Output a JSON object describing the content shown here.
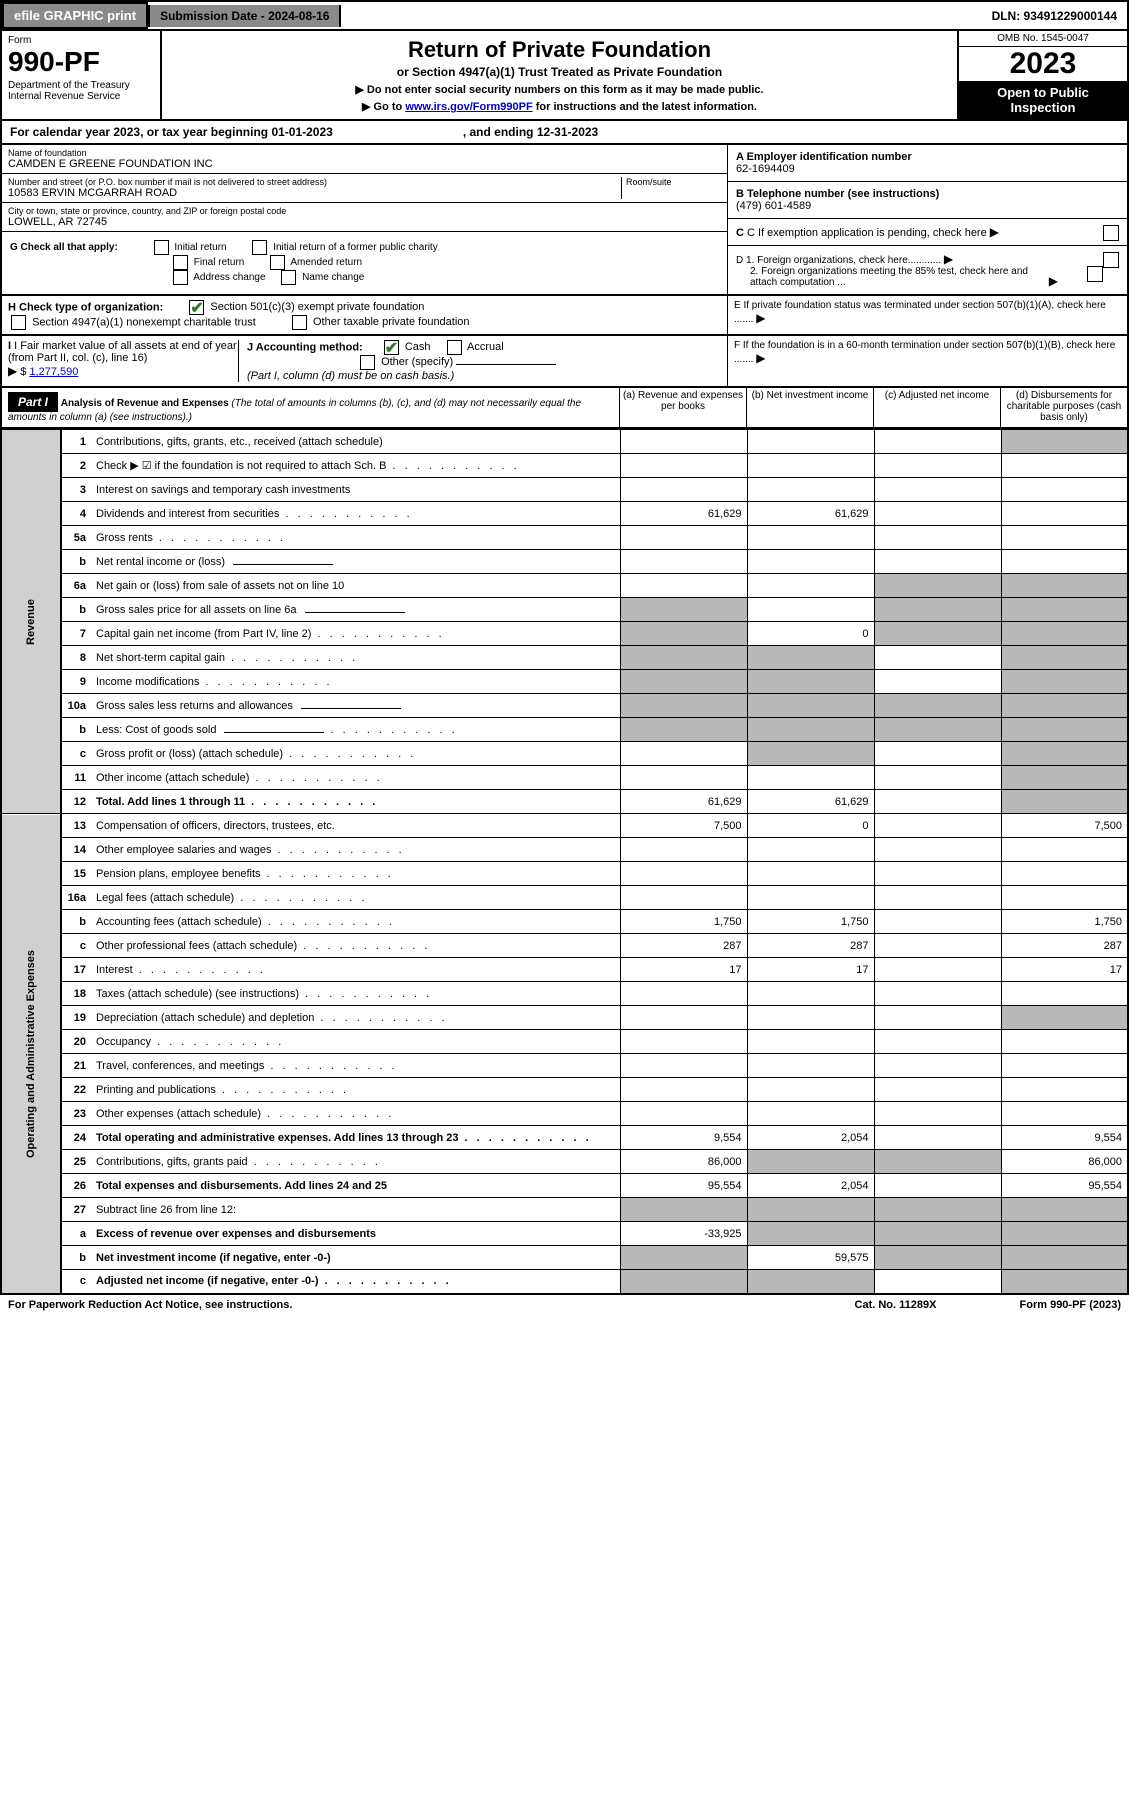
{
  "topbar": {
    "efile": "efile GRAPHIC print",
    "submission": "Submission Date - 2024-08-16",
    "dln": "DLN: 93491229000144"
  },
  "header": {
    "form_label": "Form",
    "form_num": "990-PF",
    "dept": "Department of the Treasury\nInternal Revenue Service",
    "title": "Return of Private Foundation",
    "sub1": "or Section 4947(a)(1) Trust Treated as Private Foundation",
    "sub2a": "▶ Do not enter social security numbers on this form as it may be made public.",
    "sub2b_pre": "▶ Go to ",
    "sub2b_link": "www.irs.gov/Form990PF",
    "sub2b_post": " for instructions and the latest information.",
    "omb": "OMB No. 1545-0047",
    "year": "2023",
    "open": "Open to Public Inspection"
  },
  "yrline": {
    "text_a": "For calendar year 2023, or tax year beginning 01-01-2023",
    "text_b": ", and ending 12-31-2023"
  },
  "info": {
    "name_lbl": "Name of foundation",
    "name": "CAMDEN E GREENE FOUNDATION INC",
    "addr_lbl": "Number and street (or P.O. box number if mail is not delivered to street address)",
    "addr": "10583 ERVIN MCGARRAH ROAD",
    "room_lbl": "Room/suite",
    "city_lbl": "City or town, state or province, country, and ZIP or foreign postal code",
    "city": "LOWELL, AR  72745",
    "a_lbl": "A Employer identification number",
    "a_val": "62-1694409",
    "b_lbl": "B Telephone number (see instructions)",
    "b_val": "(479) 601-4589",
    "c_lbl": "C If exemption application is pending, check here",
    "d1": "D 1. Foreign organizations, check here............",
    "d2": "2. Foreign organizations meeting the 85% test, check here and attach computation ...",
    "e": "E  If private foundation status was terminated under section 507(b)(1)(A), check here .......",
    "f": "F  If the foundation is in a 60-month termination under section 507(b)(1)(B), check here .......",
    "g_lbl": "G Check all that apply:",
    "g_opts": [
      "Initial return",
      "Initial return of a former public charity",
      "Final return",
      "Amended return",
      "Address change",
      "Name change"
    ],
    "h_lbl": "H Check type of organization:",
    "h1": "Section 501(c)(3) exempt private foundation",
    "h2": "Section 4947(a)(1) nonexempt charitable trust",
    "h3": "Other taxable private foundation",
    "i_lbl": "I Fair market value of all assets at end of year (from Part II, col. (c), line 16)",
    "i_val": "1,277,590",
    "j_lbl": "J Accounting method:",
    "j1": "Cash",
    "j2": "Accrual",
    "j3": "Other (specify)",
    "j_note": "(Part I, column (d) must be on cash basis.)"
  },
  "part1": {
    "label": "Part I",
    "title": "Analysis of Revenue and Expenses",
    "note": "(The total of amounts in columns (b), (c), and (d) may not necessarily equal the amounts in column (a) (see instructions).)",
    "col_a": "(a)   Revenue and expenses per books",
    "col_b": "(b)   Net investment income",
    "col_c": "(c)   Adjusted net income",
    "col_d": "(d)   Disbursements for charitable purposes (cash basis only)",
    "side_rev": "Revenue",
    "side_exp": "Operating and Administrative Expenses"
  },
  "rows": [
    {
      "n": "1",
      "d": "Contributions, gifts, grants, etc., received (attach schedule)",
      "a": "",
      "b": "",
      "c": "",
      "dg": true,
      "dv": ""
    },
    {
      "n": "2",
      "d": "Check ▶ ☑ if the foundation is not required to attach Sch. B",
      "dots": true
    },
    {
      "n": "3",
      "d": "Interest on savings and temporary cash investments"
    },
    {
      "n": "4",
      "d": "Dividends and interest from securities",
      "dots": true,
      "a": "61,629",
      "b": "61,629"
    },
    {
      "n": "5a",
      "d": "Gross rents",
      "dots": true
    },
    {
      "n": "b",
      "d": "Net rental income or (loss)",
      "inline": true
    },
    {
      "n": "6a",
      "d": "Net gain or (loss) from sale of assets not on line 10",
      "cg": true,
      "dg": true
    },
    {
      "n": "b",
      "d": "Gross sales price for all assets on line 6a",
      "inline": true,
      "ag": true,
      "cg": true,
      "dg": true
    },
    {
      "n": "7",
      "d": "Capital gain net income (from Part IV, line 2)",
      "dots": true,
      "ag": true,
      "b": "0",
      "cg": true,
      "dg": true
    },
    {
      "n": "8",
      "d": "Net short-term capital gain",
      "dots": true,
      "ag": true,
      "bg": true,
      "dg": true
    },
    {
      "n": "9",
      "d": "Income modifications",
      "dots": true,
      "ag": true,
      "bg": true,
      "dg": true
    },
    {
      "n": "10a",
      "d": "Gross sales less returns and allowances",
      "inline": true,
      "ag": true,
      "bg": true,
      "cg": true,
      "dg": true
    },
    {
      "n": "b",
      "d": "Less: Cost of goods sold",
      "dots": true,
      "inline": true,
      "ag": true,
      "bg": true,
      "cg": true,
      "dg": true
    },
    {
      "n": "c",
      "d": "Gross profit or (loss) (attach schedule)",
      "dots": true,
      "bg": true,
      "dg": true
    },
    {
      "n": "11",
      "d": "Other income (attach schedule)",
      "dots": true,
      "dg": true
    },
    {
      "n": "12",
      "d": "Total. Add lines 1 through 11",
      "dots": true,
      "bold": true,
      "a": "61,629",
      "b": "61,629",
      "dg": true
    },
    {
      "n": "13",
      "d": "Compensation of officers, directors, trustees, etc.",
      "a": "7,500",
      "b": "0",
      "dv": "7,500"
    },
    {
      "n": "14",
      "d": "Other employee salaries and wages",
      "dots": true
    },
    {
      "n": "15",
      "d": "Pension plans, employee benefits",
      "dots": true
    },
    {
      "n": "16a",
      "d": "Legal fees (attach schedule)",
      "dots": true
    },
    {
      "n": "b",
      "d": "Accounting fees (attach schedule)",
      "dots": true,
      "a": "1,750",
      "b": "1,750",
      "dv": "1,750"
    },
    {
      "n": "c",
      "d": "Other professional fees (attach schedule)",
      "dots": true,
      "a": "287",
      "b": "287",
      "dv": "287"
    },
    {
      "n": "17",
      "d": "Interest",
      "dots": true,
      "a": "17",
      "b": "17",
      "dv": "17"
    },
    {
      "n": "18",
      "d": "Taxes (attach schedule) (see instructions)",
      "dots": true
    },
    {
      "n": "19",
      "d": "Depreciation (attach schedule) and depletion",
      "dots": true,
      "dg": true
    },
    {
      "n": "20",
      "d": "Occupancy",
      "dots": true
    },
    {
      "n": "21",
      "d": "Travel, conferences, and meetings",
      "dots": true
    },
    {
      "n": "22",
      "d": "Printing and publications",
      "dots": true
    },
    {
      "n": "23",
      "d": "Other expenses (attach schedule)",
      "dots": true
    },
    {
      "n": "24",
      "d": "Total operating and administrative expenses. Add lines 13 through 23",
      "dots": true,
      "bold": true,
      "a": "9,554",
      "b": "2,054",
      "dv": "9,554"
    },
    {
      "n": "25",
      "d": "Contributions, gifts, grants paid",
      "dots": true,
      "a": "86,000",
      "bg": true,
      "cg": true,
      "dv": "86,000"
    },
    {
      "n": "26",
      "d": "Total expenses and disbursements. Add lines 24 and 25",
      "bold": true,
      "a": "95,554",
      "b": "2,054",
      "dv": "95,554"
    },
    {
      "n": "27",
      "d": "Subtract line 26 from line 12:",
      "ag": true,
      "bg": true,
      "cg": true,
      "dg": true
    },
    {
      "n": "a",
      "d": "Excess of revenue over expenses and disbursements",
      "bold": true,
      "a": "-33,925",
      "bg": true,
      "cg": true,
      "dg": true
    },
    {
      "n": "b",
      "d": "Net investment income (if negative, enter -0-)",
      "bold": true,
      "ag": true,
      "b": "59,575",
      "cg": true,
      "dg": true
    },
    {
      "n": "c",
      "d": "Adjusted net income (if negative, enter -0-)",
      "dots": true,
      "bold": true,
      "ag": true,
      "bg": true,
      "dg": true
    }
  ],
  "footer": {
    "left": "For Paperwork Reduction Act Notice, see instructions.",
    "mid": "Cat. No. 11289X",
    "right": "Form 990-PF (2023)"
  }
}
